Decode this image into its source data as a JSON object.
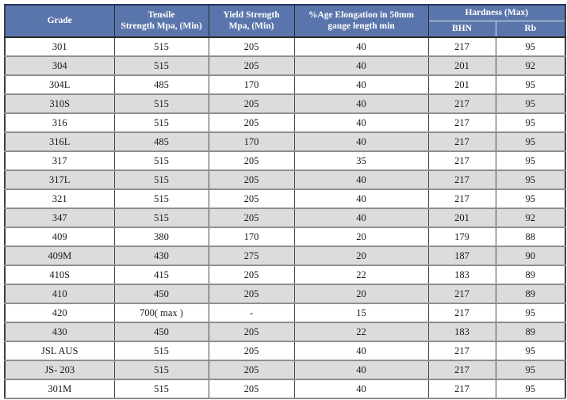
{
  "colors": {
    "header_background": "#5a75ab",
    "header_text": "#ffffff",
    "row_alternate_background": "#dcdcdc",
    "row_background": "#ffffff",
    "grid_line": "#474747",
    "row_separator": "#8e8e8e",
    "body_text": "#1a1a1a"
  },
  "table": {
    "header": {
      "grade": "Grade",
      "tensile_line1": "Tensile",
      "tensile_line2": "Strength Mpa, (Min)",
      "yield_line1": "Yield Strength",
      "yield_line2": "Mpa, (Min)",
      "elongation_line1": "%Age Elongation in 50mm",
      "elongation_line2": "gauge length min",
      "hardness_group": "Hardness (Max)",
      "bhn": "BHN",
      "rb": "Rb"
    },
    "rows": [
      {
        "grade": "301",
        "tensile": "515",
        "yield": "205",
        "elongation": "40",
        "bhn": "217",
        "rb": "95"
      },
      {
        "grade": "304",
        "tensile": "515",
        "yield": "205",
        "elongation": "40",
        "bhn": "201",
        "rb": "92"
      },
      {
        "grade": "304L",
        "tensile": "485",
        "yield": "170",
        "elongation": "40",
        "bhn": "201",
        "rb": "95"
      },
      {
        "grade": "310S",
        "tensile": "515",
        "yield": "205",
        "elongation": "40",
        "bhn": "217",
        "rb": "95"
      },
      {
        "grade": "316",
        "tensile": "515",
        "yield": "205",
        "elongation": "40",
        "bhn": "217",
        "rb": "95"
      },
      {
        "grade": "316L",
        "tensile": "485",
        "yield": "170",
        "elongation": "40",
        "bhn": "217",
        "rb": "95"
      },
      {
        "grade": "317",
        "tensile": "515",
        "yield": "205",
        "elongation": "35",
        "bhn": "217",
        "rb": "95"
      },
      {
        "grade": "317L",
        "tensile": "515",
        "yield": "205",
        "elongation": "40",
        "bhn": "217",
        "rb": "95"
      },
      {
        "grade": "321",
        "tensile": "515",
        "yield": "205",
        "elongation": "40",
        "bhn": "217",
        "rb": "95"
      },
      {
        "grade": "347",
        "tensile": "515",
        "yield": "205",
        "elongation": "40",
        "bhn": "201",
        "rb": "92"
      },
      {
        "grade": "409",
        "tensile": "380",
        "yield": "170",
        "elongation": "20",
        "bhn": "179",
        "rb": "88"
      },
      {
        "grade": "409M",
        "tensile": "430",
        "yield": "275",
        "elongation": "20",
        "bhn": "187",
        "rb": "90"
      },
      {
        "grade": "410S",
        "tensile": "415",
        "yield": "205",
        "elongation": "22",
        "bhn": "183",
        "rb": "89"
      },
      {
        "grade": "410",
        "tensile": "450",
        "yield": "205",
        "elongation": "20",
        "bhn": "217",
        "rb": "89"
      },
      {
        "grade": "420",
        "tensile": "700( max )",
        "yield": "-",
        "elongation": "15",
        "bhn": "217",
        "rb": "95"
      },
      {
        "grade": "430",
        "tensile": "450",
        "yield": "205",
        "elongation": "22",
        "bhn": "183",
        "rb": "89"
      },
      {
        "grade": "JSL AUS",
        "tensile": "515",
        "yield": "205",
        "elongation": "40",
        "bhn": "217",
        "rb": "95"
      },
      {
        "grade": "JS- 203",
        "tensile": "515",
        "yield": "205",
        "elongation": "40",
        "bhn": "217",
        "rb": "95"
      },
      {
        "grade": "301M",
        "tensile": "515",
        "yield": "205",
        "elongation": "40",
        "bhn": "217",
        "rb": "95"
      }
    ]
  }
}
